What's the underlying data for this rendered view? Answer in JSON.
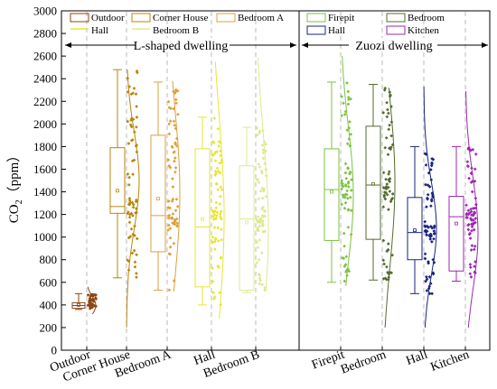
{
  "chart_data": {
    "type": "box",
    "ylabel": "CO",
    "ylabel_sub": "2",
    "ylabel_unit": "（ppm）",
    "ylim": [
      0,
      3000
    ],
    "yticks": [
      0,
      200,
      400,
      600,
      800,
      1000,
      1200,
      1400,
      1600,
      1800,
      2000,
      2200,
      2400,
      2600,
      2800,
      3000
    ],
    "groups": [
      {
        "name": "L-shaped dwelling",
        "categories": [
          "Outdoor",
          "Corner House",
          "Bedroom A",
          "Hall",
          "Bedroom B"
        ]
      },
      {
        "name": "Zuozi dwelling",
        "categories": [
          "Firepit",
          "Bedroom",
          "Hall",
          "Kitchen"
        ]
      }
    ],
    "legend": [
      [
        "Outdoor",
        "Corner House",
        "Bedroom A",
        "Firepit",
        "Bedroom"
      ],
      [
        "Hall",
        "Bedroom B",
        "",
        "Hall",
        "Kitchen"
      ]
    ],
    "series": [
      {
        "name": "Outdoor",
        "color": "#8b4513",
        "min": 360,
        "q1": 370,
        "median": 395,
        "q3": 420,
        "max": 500,
        "mean": 400,
        "curve_top": 560
      },
      {
        "name": "Corner House",
        "color": "#b8860b",
        "min": 640,
        "q1": 1210,
        "median": 1270,
        "q3": 1790,
        "max": 2480,
        "mean": 1410,
        "curve_top": 2480,
        "curve_bottom": 200
      },
      {
        "name": "Bedroom A",
        "color": "#dea03a",
        "min": 530,
        "q1": 870,
        "median": 1190,
        "q3": 1900,
        "max": 2370,
        "mean": 1340,
        "curve_top": 2380,
        "curve_bottom": 520
      },
      {
        "name": "Hall",
        "color": "#e6e635",
        "min": 400,
        "q1": 560,
        "median": 1090,
        "q3": 1780,
        "max": 2060,
        "mean": 1160,
        "curve_top": 2550,
        "curve_bottom": 280
      },
      {
        "name": "Bedroom B",
        "color": "#dfe890",
        "min": 510,
        "q1": 530,
        "median": 1160,
        "q3": 1630,
        "max": 1970,
        "mean": 1130,
        "curve_top": 2590,
        "curve_bottom": 520
      },
      {
        "name": "Firepit",
        "color": "#7dc242",
        "min": 600,
        "q1": 970,
        "median": 1420,
        "q3": 1780,
        "max": 2370,
        "mean": 1400,
        "curve_top": 2600,
        "curve_bottom": 570
      },
      {
        "name": "Bedroom",
        "color": "#556b2f",
        "min": 620,
        "q1": 980,
        "median": 1460,
        "q3": 1980,
        "max": 2350,
        "mean": 1470,
        "curve_top": 2320,
        "curve_bottom": 200
      },
      {
        "name": "Hall",
        "color": "#1a237e",
        "min": 500,
        "q1": 800,
        "median": 1040,
        "q3": 1350,
        "max": 1800,
        "mean": 1060,
        "curve_top": 2330,
        "curve_bottom": 200
      },
      {
        "name": "Kitchen",
        "color": "#9c27b0",
        "min": 610,
        "q1": 700,
        "median": 1180,
        "q3": 1360,
        "max": 1800,
        "mean": 1120,
        "curve_top": 2290,
        "curve_bottom": 200
      }
    ]
  }
}
